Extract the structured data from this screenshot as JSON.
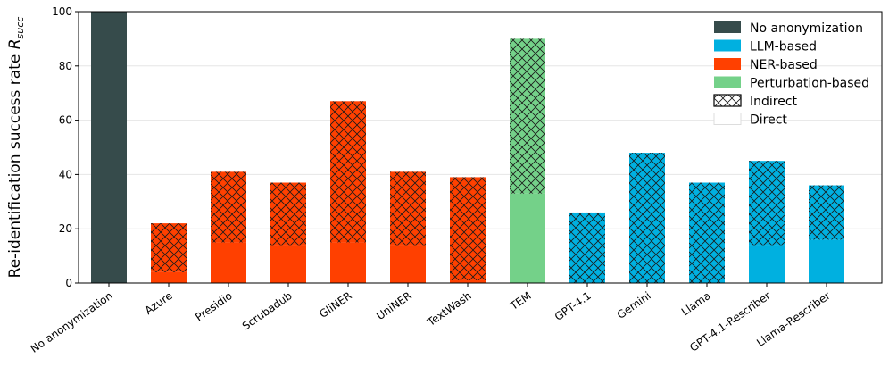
{
  "chart_data": {
    "type": "bar",
    "ylabel": "Re-identification success rate ",
    "ylabel_symbol": "R",
    "ylabel_subscript": "succ",
    "ylim": [
      0,
      100
    ],
    "yticks": [
      0,
      20,
      40,
      60,
      80,
      100
    ],
    "ytick_labels": [
      "0",
      "20",
      "40",
      "60",
      "80",
      "100"
    ],
    "grid": true,
    "legend_position": "top-right",
    "colors": {
      "none": "#364b4b",
      "llm": "#00b0e0",
      "ner": "#ff4000",
      "perturbation": "#74d189"
    },
    "legend": [
      {
        "label": "No anonymization",
        "kind": "none"
      },
      {
        "label": "LLM-based",
        "kind": "llm"
      },
      {
        "label": "NER-based",
        "kind": "ner"
      },
      {
        "label": "Perturbation-based",
        "kind": "perturbation"
      },
      {
        "label": "Indirect",
        "kind": "hatch"
      },
      {
        "label": "Direct",
        "kind": "plain"
      }
    ],
    "categories": [
      "No anonymization",
      "Azure",
      "Presidio",
      "Scrubadub",
      "GliNER",
      "UniNER",
      "TextWash",
      "TEM",
      "GPT-4.1",
      "Gemini",
      "Llama",
      "GPT-4.1-Rescriber",
      "Llama-Rescriber"
    ],
    "method_type": [
      "none",
      "ner",
      "ner",
      "ner",
      "ner",
      "ner",
      "ner",
      "perturbation",
      "llm",
      "llm",
      "llm",
      "llm",
      "llm"
    ],
    "series": [
      {
        "name": "Direct",
        "values": [
          100,
          4,
          15,
          14,
          15,
          14,
          1,
          33,
          0,
          0,
          0,
          14,
          16
        ]
      },
      {
        "name": "Indirect",
        "values": [
          0,
          18,
          26,
          23,
          52,
          27,
          38,
          57,
          26,
          48,
          37,
          31,
          20
        ]
      }
    ],
    "totals": [
      100,
      22,
      41,
      37,
      67,
      41,
      39,
      90,
      26,
      48,
      37,
      45,
      36
    ]
  }
}
